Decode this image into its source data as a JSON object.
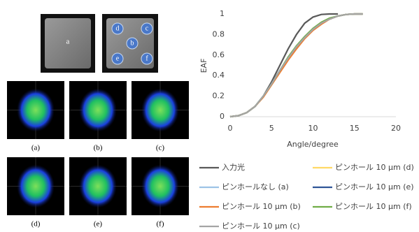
{
  "figure": {
    "sample_label": "a",
    "holes": [
      "d",
      "c",
      "b",
      "e",
      "f"
    ],
    "panel_labels": [
      "(a)",
      "(b)",
      "(c)",
      "(d)",
      "(e)",
      "(f)"
    ]
  },
  "chart_data": {
    "type": "line",
    "x_label": "Angle/degree",
    "y_label": "EAF",
    "x": [
      0,
      1,
      2,
      3,
      4,
      5,
      6,
      7,
      8,
      9,
      10,
      11,
      12,
      13,
      14,
      15,
      16
    ],
    "xlim": [
      0,
      20
    ],
    "xticks": [
      0,
      5,
      10,
      15,
      20
    ],
    "ylim": [
      0,
      1
    ],
    "yticks": [
      0,
      0.2,
      0.4,
      0.6,
      0.8,
      1
    ],
    "grid": false,
    "series": [
      {
        "name": "入力光",
        "color": "#595959",
        "values": [
          0,
          0.01,
          0.04,
          0.1,
          0.2,
          0.34,
          0.5,
          0.66,
          0.8,
          0.91,
          0.97,
          0.995,
          1,
          1,
          null,
          null,
          null
        ]
      },
      {
        "name": "ピンホール 10 μm (d)",
        "color": "#ffd966",
        "values": [
          0,
          0.01,
          0.04,
          0.1,
          0.2,
          0.32,
          0.45,
          0.57,
          0.68,
          0.77,
          0.85,
          0.91,
          0.95,
          0.98,
          0.995,
          1,
          1
        ]
      },
      {
        "name": "ピンホールなし (a)",
        "color": "#9dc3e6",
        "values": [
          0,
          0.01,
          0.04,
          0.1,
          0.2,
          0.32,
          0.45,
          0.57,
          0.68,
          0.77,
          0.85,
          0.91,
          0.95,
          0.98,
          0.995,
          1,
          1
        ]
      },
      {
        "name": "ピンホール 10 μm (e)",
        "color": "#2f5597",
        "values": [
          0,
          0.01,
          0.04,
          0.1,
          0.2,
          0.32,
          0.45,
          0.57,
          0.68,
          0.77,
          0.85,
          0.91,
          0.95,
          0.98,
          0.995,
          1,
          1
        ]
      },
      {
        "name": "ピンホール 10 μm (b)",
        "color": "#ed7d31",
        "values": [
          0,
          0.01,
          0.04,
          0.1,
          0.19,
          0.31,
          0.43,
          0.55,
          0.66,
          0.76,
          0.84,
          0.9,
          0.95,
          0.98,
          0.995,
          1,
          1
        ]
      },
      {
        "name": "ピンホール 10 μm (f)",
        "color": "#70ad47",
        "values": [
          0,
          0.01,
          0.04,
          0.1,
          0.2,
          0.32,
          0.45,
          0.58,
          0.69,
          0.78,
          0.86,
          0.92,
          0.96,
          0.98,
          0.995,
          1,
          1
        ]
      },
      {
        "name": "ピンホール 10 μm (c)",
        "color": "#a5a5a5",
        "values": [
          0,
          0.01,
          0.04,
          0.1,
          0.2,
          0.32,
          0.45,
          0.57,
          0.68,
          0.77,
          0.85,
          0.91,
          0.95,
          0.98,
          0.995,
          1,
          1
        ]
      }
    ]
  }
}
